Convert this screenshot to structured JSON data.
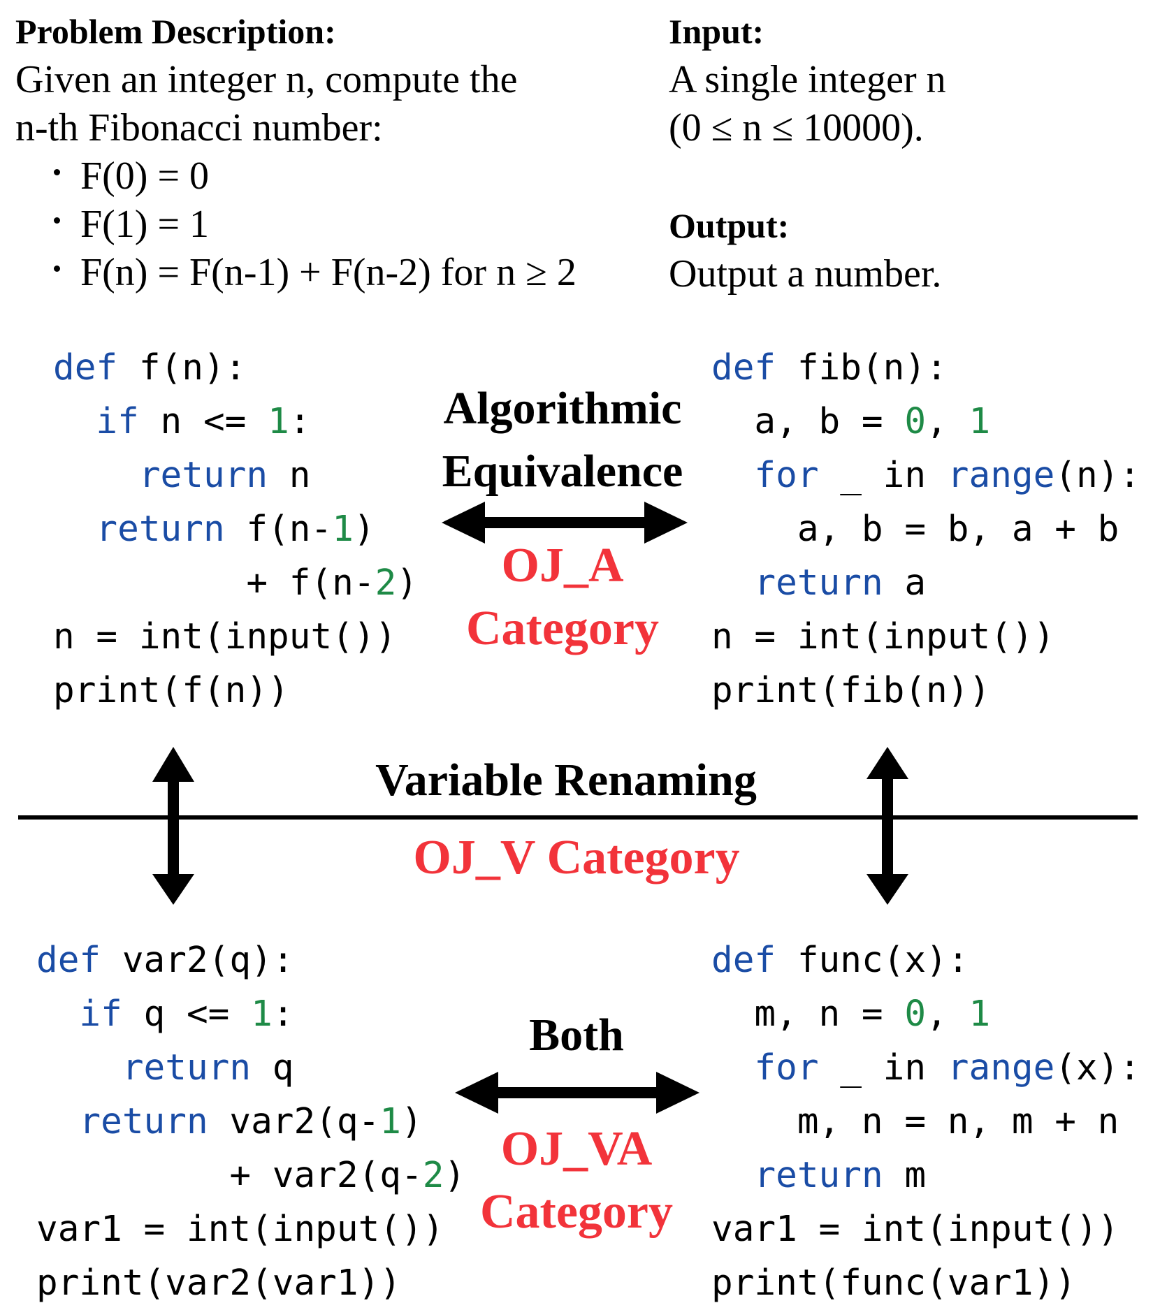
{
  "problem": {
    "heading": "Problem Description:",
    "line1": "Given an integer n, compute the",
    "line2": "n-th Fibonacci number:",
    "bullets": [
      "F(0) = 0",
      "F(1) = 1",
      "F(n) = F(n-1) + F(n-2) for n ≥ 2"
    ]
  },
  "input": {
    "heading": "Input:",
    "line1": "A single integer n",
    "line2": "(0 ≤ n ≤ 10000)."
  },
  "output": {
    "heading": "Output:",
    "line1": "Output a number."
  },
  "labels": {
    "algorithmic_line1": "Algorithmic",
    "algorithmic_line2": "Equivalence",
    "oj_a_line1": "OJ_A",
    "oj_a_line2": "Category",
    "variable_renaming": "Variable Renaming",
    "oj_v": "OJ_V Category",
    "both": "Both",
    "oj_va_line1": "OJ_VA",
    "oj_va_line2": "Category"
  },
  "colors": {
    "keyword": "#1a4ca5",
    "number": "#1e8a46",
    "category": "#f2333a"
  },
  "code_blocks": {
    "top_left": [
      [
        {
          "t": "def",
          "c": "kw"
        },
        {
          "t": " f(n):"
        }
      ],
      [
        {
          "t": "  "
        },
        {
          "t": "if",
          "c": "kw"
        },
        {
          "t": " n <= "
        },
        {
          "t": "1",
          "c": "num"
        },
        {
          "t": ":"
        }
      ],
      [
        {
          "t": "    "
        },
        {
          "t": "return",
          "c": "kw"
        },
        {
          "t": " n"
        }
      ],
      [
        {
          "t": "  "
        },
        {
          "t": "return",
          "c": "kw"
        },
        {
          "t": " f(n-"
        },
        {
          "t": "1",
          "c": "num"
        },
        {
          "t": ")"
        }
      ],
      [
        {
          "t": "         + f(n-"
        },
        {
          "t": "2",
          "c": "num"
        },
        {
          "t": ")"
        }
      ],
      [
        {
          "t": "n = int(input())"
        }
      ],
      [
        {
          "t": "print(f(n))"
        }
      ]
    ],
    "top_right": [
      [
        {
          "t": "def",
          "c": "kw"
        },
        {
          "t": " fib(n):"
        }
      ],
      [
        {
          "t": "  a, b = "
        },
        {
          "t": "0",
          "c": "num"
        },
        {
          "t": ", "
        },
        {
          "t": "1",
          "c": "num"
        }
      ],
      [
        {
          "t": "  "
        },
        {
          "t": "for",
          "c": "kw"
        },
        {
          "t": " _ in "
        },
        {
          "t": "range",
          "c": "kw"
        },
        {
          "t": "(n):"
        }
      ],
      [
        {
          "t": "    a, b = b, a + b"
        }
      ],
      [
        {
          "t": "  "
        },
        {
          "t": "return",
          "c": "kw"
        },
        {
          "t": " a"
        }
      ],
      [
        {
          "t": "n = int(input())"
        }
      ],
      [
        {
          "t": "print(fib(n))"
        }
      ]
    ],
    "bottom_left": [
      [
        {
          "t": "def",
          "c": "kw"
        },
        {
          "t": " var2(q):"
        }
      ],
      [
        {
          "t": "  "
        },
        {
          "t": "if",
          "c": "kw"
        },
        {
          "t": " q <= "
        },
        {
          "t": "1",
          "c": "num"
        },
        {
          "t": ":"
        }
      ],
      [
        {
          "t": "    "
        },
        {
          "t": "return",
          "c": "kw"
        },
        {
          "t": " q"
        }
      ],
      [
        {
          "t": "  "
        },
        {
          "t": "return",
          "c": "kw"
        },
        {
          "t": " var2(q-"
        },
        {
          "t": "1",
          "c": "num"
        },
        {
          "t": ")"
        }
      ],
      [
        {
          "t": "         + var2(q-"
        },
        {
          "t": "2",
          "c": "num"
        },
        {
          "t": ")"
        }
      ],
      [
        {
          "t": "var1 = int(input())"
        }
      ],
      [
        {
          "t": "print(var2(var1))"
        }
      ]
    ],
    "bottom_right": [
      [
        {
          "t": "def",
          "c": "kw"
        },
        {
          "t": " func(x):"
        }
      ],
      [
        {
          "t": "  m, n = "
        },
        {
          "t": "0",
          "c": "num"
        },
        {
          "t": ", "
        },
        {
          "t": "1",
          "c": "num"
        }
      ],
      [
        {
          "t": "  "
        },
        {
          "t": "for",
          "c": "kw"
        },
        {
          "t": " _ in "
        },
        {
          "t": "range",
          "c": "kw"
        },
        {
          "t": "(x):"
        }
      ],
      [
        {
          "t": "    m, n = n, m + n"
        }
      ],
      [
        {
          "t": "  "
        },
        {
          "t": "return",
          "c": "kw"
        },
        {
          "t": " m"
        }
      ],
      [
        {
          "t": "var1 = int(input())"
        }
      ],
      [
        {
          "t": "print(func(var1))"
        }
      ]
    ]
  }
}
